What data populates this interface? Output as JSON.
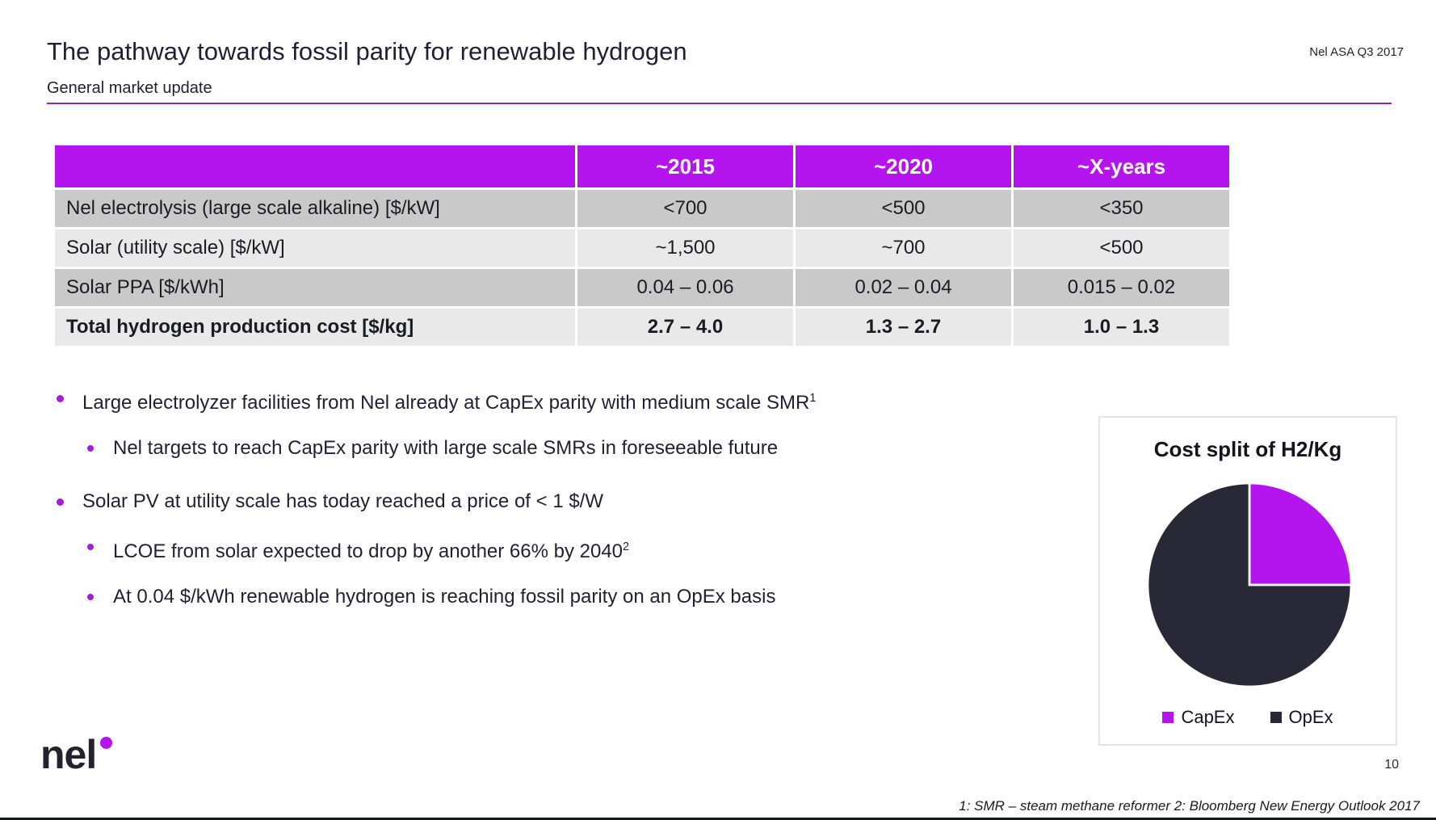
{
  "header": {
    "title": "The pathway towards fossil parity for renewable hydrogen",
    "subtitle": "General market update",
    "meta": "Nel ASA Q3 2017"
  },
  "table": {
    "columns": [
      "",
      "~2015",
      "~2020",
      "~X-years"
    ],
    "rows": [
      {
        "label": "Nel electrolysis (large scale alkaline) [$/kW]",
        "values": [
          "<700",
          "<500",
          "<350"
        ],
        "bold": false
      },
      {
        "label": "Solar (utility scale) [$/kW]",
        "values": [
          "~1,500",
          "~700",
          "<500"
        ],
        "bold": false
      },
      {
        "label": "Solar PPA [$/kWh]",
        "values": [
          "0.04 – 0.06",
          "0.02 – 0.04",
          "0.015 – 0.02"
        ],
        "bold": false
      },
      {
        "label": "Total hydrogen production cost [$/kg]",
        "values": [
          "2.7 – 4.0",
          "1.3 – 2.7",
          "1.0 – 1.3"
        ],
        "bold": true
      }
    ]
  },
  "bullets": [
    {
      "level": 1,
      "text": "Large electrolyzer facilities from Nel already at CapEx parity with medium scale SMR",
      "sup": "1"
    },
    {
      "level": 2,
      "text": "Nel targets to reach CapEx parity with large scale SMRs in foreseeable future",
      "sup": ""
    },
    {
      "level": 1,
      "text": "Solar PV at utility scale has today reached a price of < 1 $/W",
      "sup": ""
    },
    {
      "level": 2,
      "text": "LCOE from solar expected to drop by another 66% by 2040",
      "sup": "2"
    },
    {
      "level": 2,
      "text": "At 0.04 $/kWh renewable hydrogen is reaching fossil parity on an OpEx basis",
      "sup": ""
    }
  ],
  "chart_data": {
    "type": "pie",
    "title": "Cost split of H2/Kg",
    "slices": [
      {
        "label": "CapEx",
        "value": 25,
        "color": "#b414ee"
      },
      {
        "label": "OpEx",
        "value": 75,
        "color": "#282837"
      }
    ],
    "legend_position": "bottom",
    "start_angle_deg": -90
  },
  "footer": {
    "logo_text": "nel",
    "page_number": "10",
    "footnote": "1: SMR – steam methane reformer 2: Bloomberg New Energy Outlook 2017"
  },
  "colors": {
    "accent_purple": "#b414ee",
    "divider_purple": "#8e24aa",
    "dark_navy": "#282837",
    "table_dark_row": "#c9c9c9",
    "table_light_row": "#e9e9e9",
    "slice_border": "#ffffff"
  }
}
